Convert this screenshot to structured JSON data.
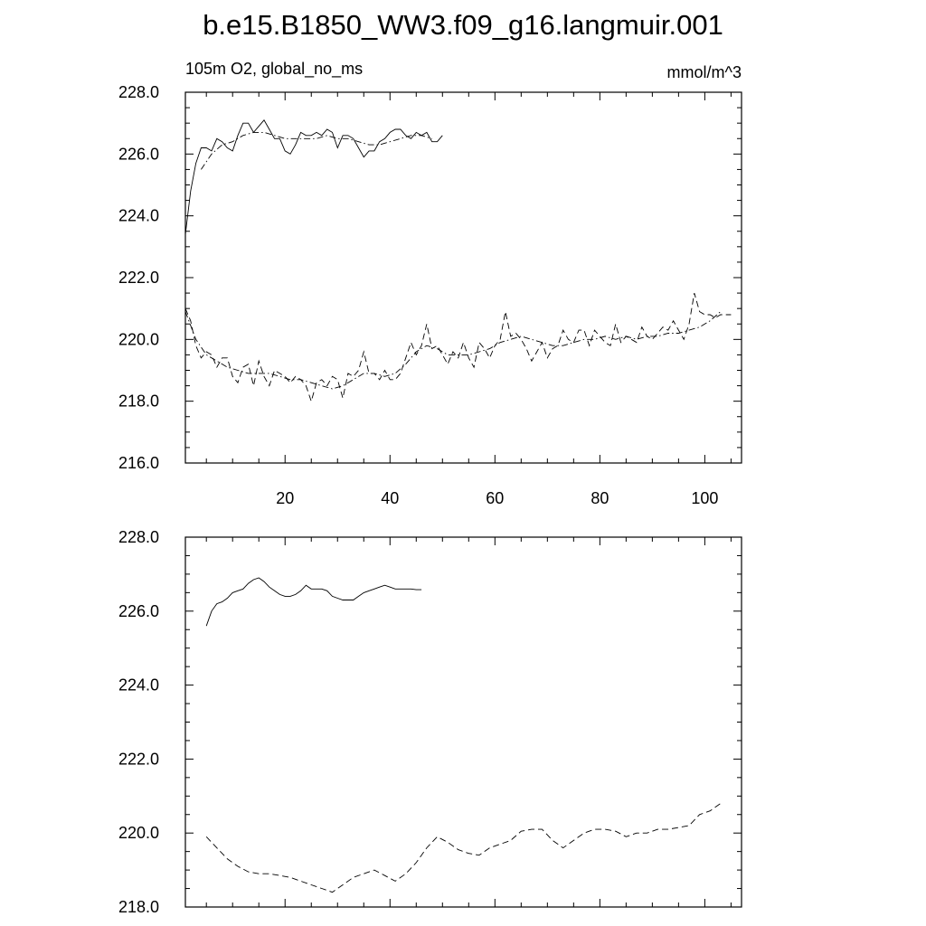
{
  "title": "b.e15.B1850_WW3.f09_g16.langmuir.001",
  "chart_data": [
    {
      "type": "line",
      "subtitle_left": "105m O2, global_no_ms",
      "subtitle_right": "mmol/m^3",
      "xlim": [
        1,
        107
      ],
      "ylim": [
        216,
        228
      ],
      "x_ticks": [
        20,
        40,
        60,
        80,
        100
      ],
      "x_tick_labels": [
        "20",
        "40",
        "60",
        "80",
        "100"
      ],
      "y_ticks": [
        216,
        218,
        220,
        222,
        224,
        226,
        228
      ],
      "y_tick_labels": [
        "216.0",
        "218.0",
        "220.0",
        "222.0",
        "224.0",
        "226.0",
        "228.0"
      ],
      "grid": false,
      "series": [
        {
          "style": "solid",
          "x": [
            1,
            2,
            3,
            4,
            5,
            6,
            7,
            8,
            9,
            10,
            11,
            12,
            13,
            14,
            15,
            16,
            17,
            18,
            19,
            20,
            21,
            22,
            23,
            24,
            25,
            26,
            27,
            28,
            29,
            30,
            31,
            32,
            33,
            34,
            35,
            36,
            37,
            38,
            39,
            40,
            41,
            42,
            43,
            44,
            45,
            46,
            47,
            48,
            49,
            50
          ],
          "values": [
            223.4,
            224.8,
            225.7,
            226.2,
            226.2,
            226.1,
            226.5,
            226.4,
            226.2,
            226.1,
            226.6,
            227.0,
            227.0,
            226.7,
            226.9,
            227.1,
            226.8,
            226.5,
            226.5,
            226.1,
            226.0,
            226.3,
            226.7,
            226.6,
            226.6,
            226.7,
            226.6,
            226.8,
            226.7,
            226.2,
            226.6,
            226.6,
            226.5,
            226.2,
            225.9,
            226.1,
            226.1,
            226.4,
            226.5,
            226.7,
            226.8,
            226.8,
            226.6,
            226.5,
            226.7,
            226.6,
            226.7,
            226.4,
            226.4,
            226.6
          ]
        },
        {
          "style": "dash-dot",
          "x": [
            4,
            6,
            8,
            10,
            12,
            14,
            16,
            18,
            20,
            22,
            24,
            26,
            28,
            30,
            32,
            34,
            36,
            38,
            40,
            42,
            44,
            46,
            48
          ],
          "values": [
            225.5,
            226.0,
            226.3,
            226.4,
            226.6,
            226.7,
            226.7,
            226.6,
            226.5,
            226.5,
            226.5,
            226.5,
            226.6,
            226.5,
            226.5,
            226.4,
            226.3,
            226.3,
            226.4,
            226.5,
            226.6,
            226.6,
            226.5
          ]
        },
        {
          "style": "dash",
          "x": [
            1,
            2,
            3,
            4,
            5,
            6,
            7,
            8,
            9,
            10,
            11,
            12,
            13,
            14,
            15,
            16,
            17,
            18,
            19,
            20,
            21,
            22,
            23,
            24,
            25,
            26,
            27,
            28,
            29,
            30,
            31,
            32,
            33,
            34,
            35,
            36,
            37,
            38,
            39,
            40,
            41,
            42,
            43,
            44,
            45,
            46,
            47,
            48,
            49,
            50,
            51,
            52,
            53,
            54,
            55,
            56,
            57,
            58,
            59,
            60,
            61,
            62,
            63,
            64,
            65,
            66,
            67,
            68,
            69,
            70,
            71,
            72,
            73,
            74,
            75,
            76,
            77,
            78,
            79,
            80,
            81,
            82,
            83,
            84,
            85,
            86,
            87,
            88,
            89,
            90,
            91,
            92,
            93,
            94,
            95,
            96,
            97,
            98,
            99,
            100,
            101,
            102,
            103,
            104,
            105
          ],
          "values": [
            221.0,
            220.6,
            219.8,
            219.4,
            219.6,
            219.5,
            219.1,
            219.4,
            219.4,
            218.8,
            218.6,
            219.1,
            219.2,
            218.5,
            219.3,
            218.8,
            218.5,
            219.0,
            218.9,
            218.8,
            218.6,
            218.8,
            218.7,
            218.5,
            218.0,
            218.6,
            218.7,
            218.5,
            218.8,
            218.7,
            218.1,
            218.9,
            218.8,
            219.0,
            219.6,
            218.9,
            218.9,
            218.7,
            219.0,
            218.7,
            218.7,
            218.9,
            219.4,
            219.9,
            219.5,
            219.8,
            220.5,
            219.7,
            219.8,
            219.5,
            219.2,
            219.6,
            219.4,
            219.9,
            219.4,
            219.1,
            219.9,
            219.7,
            219.4,
            219.8,
            220.0,
            220.9,
            220.1,
            220.2,
            220.0,
            219.7,
            219.3,
            219.6,
            219.9,
            219.4,
            219.7,
            219.8,
            220.3,
            220.0,
            219.9,
            220.3,
            220.3,
            219.8,
            220.3,
            220.1,
            219.9,
            219.8,
            220.5,
            219.9,
            220.1,
            220.0,
            219.9,
            220.4,
            220.1,
            220.0,
            220.2,
            220.4,
            220.3,
            220.6,
            220.3,
            220.0,
            220.5,
            221.5,
            220.9,
            220.8,
            220.8,
            220.7,
            220.8,
            220.8,
            220.8
          ]
        },
        {
          "style": "dash-dot",
          "x": [
            1,
            3,
            5,
            7,
            9,
            11,
            13,
            15,
            17,
            19,
            21,
            23,
            25,
            27,
            29,
            31,
            33,
            35,
            37,
            39,
            41,
            43,
            45,
            47,
            49,
            51,
            53,
            55,
            57,
            59,
            61,
            63,
            65,
            67,
            69,
            71,
            73,
            75,
            77,
            79,
            81,
            83,
            85,
            87,
            89,
            91,
            93,
            95,
            97,
            99,
            101,
            103
          ],
          "values": [
            220.9,
            220.0,
            219.5,
            219.3,
            219.1,
            219.0,
            218.9,
            218.9,
            218.9,
            218.8,
            218.7,
            218.7,
            218.6,
            218.5,
            218.4,
            218.5,
            218.7,
            218.9,
            218.9,
            218.8,
            218.9,
            219.2,
            219.6,
            219.8,
            219.7,
            219.5,
            219.5,
            219.5,
            219.6,
            219.7,
            219.9,
            220.0,
            220.1,
            220.0,
            219.9,
            219.8,
            219.8,
            219.9,
            220.0,
            220.0,
            220.1,
            220.0,
            220.1,
            220.0,
            220.1,
            220.1,
            220.2,
            220.2,
            220.3,
            220.4,
            220.6,
            220.9
          ]
        }
      ]
    },
    {
      "type": "line",
      "xlim": [
        1,
        107
      ],
      "ylim": [
        218,
        228
      ],
      "x_ticks": [
        20,
        40,
        60,
        80,
        100
      ],
      "y_ticks": [
        218,
        220,
        222,
        224,
        226,
        228
      ],
      "y_tick_labels": [
        "218.0",
        "220.0",
        "222.0",
        "224.0",
        "226.0",
        "228.0"
      ],
      "grid": false,
      "series": [
        {
          "style": "solid",
          "x": [
            5,
            6,
            7,
            8,
            9,
            10,
            11,
            12,
            13,
            14,
            15,
            16,
            17,
            18,
            19,
            20,
            21,
            22,
            23,
            24,
            25,
            26,
            27,
            28,
            29,
            30,
            31,
            32,
            33,
            34,
            35,
            36,
            37,
            38,
            39,
            40,
            41,
            42,
            43,
            44,
            45,
            46
          ],
          "values": [
            225.6,
            226.0,
            226.2,
            226.25,
            226.35,
            226.5,
            226.55,
            226.6,
            226.75,
            226.85,
            226.9,
            226.8,
            226.65,
            226.55,
            226.45,
            226.4,
            226.4,
            226.45,
            226.55,
            226.7,
            226.6,
            226.6,
            226.6,
            226.55,
            226.4,
            226.35,
            226.3,
            226.3,
            226.3,
            226.4,
            226.5,
            226.55,
            226.6,
            226.65,
            226.7,
            226.65,
            226.6,
            226.6,
            226.6,
            226.6,
            226.58,
            226.58
          ]
        },
        {
          "style": "dash",
          "x": [
            5,
            7,
            9,
            11,
            13,
            15,
            17,
            19,
            21,
            23,
            25,
            27,
            29,
            31,
            33,
            35,
            37,
            39,
            41,
            43,
            45,
            47,
            49,
            51,
            53,
            55,
            57,
            59,
            61,
            63,
            65,
            67,
            69,
            71,
            73,
            75,
            77,
            79,
            81,
            83,
            85,
            87,
            89,
            91,
            93,
            95,
            97,
            99,
            101,
            103
          ],
          "values": [
            219.9,
            219.6,
            219.3,
            219.1,
            218.95,
            218.9,
            218.9,
            218.85,
            218.8,
            218.7,
            218.6,
            218.5,
            218.4,
            218.6,
            218.8,
            218.9,
            219.0,
            218.85,
            218.7,
            218.9,
            219.2,
            219.6,
            219.9,
            219.75,
            219.55,
            219.45,
            219.4,
            219.6,
            219.7,
            219.8,
            220.05,
            220.1,
            220.1,
            219.8,
            219.6,
            219.8,
            220.0,
            220.1,
            220.1,
            220.05,
            219.9,
            220.0,
            220.0,
            220.1,
            220.1,
            220.15,
            220.2,
            220.5,
            220.6,
            220.8
          ]
        }
      ]
    }
  ]
}
